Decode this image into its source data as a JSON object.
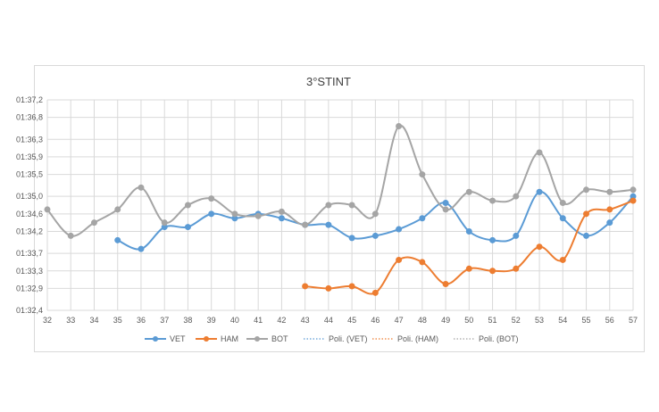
{
  "chart_data": {
    "type": "line",
    "title": "3°STINT",
    "x": [
      32,
      33,
      34,
      35,
      36,
      37,
      38,
      39,
      40,
      41,
      42,
      43,
      44,
      45,
      46,
      47,
      48,
      49,
      50,
      51,
      52,
      53,
      54,
      55,
      56,
      57
    ],
    "x_tick_labels": [
      "32",
      "33",
      "34",
      "35",
      "36",
      "37",
      "38",
      "39",
      "40",
      "41",
      "42",
      "43",
      "44",
      "45",
      "46",
      "47",
      "48",
      "49",
      "50",
      "51",
      "52",
      "53",
      "54",
      "55",
      "56",
      "57"
    ],
    "y_tick_labels": [
      "01:32,4",
      "01:32,9",
      "01:33,3",
      "01:33,7",
      "01:34,2",
      "01:34,6",
      "01:35,0",
      "01:35,5",
      "01:35,9",
      "01:36,3",
      "01:36,8",
      "01:37,2"
    ],
    "y_tick_seconds": [
      92.4,
      92.9,
      93.3,
      93.7,
      94.2,
      94.6,
      95.0,
      95.5,
      95.9,
      96.3,
      96.8,
      97.2
    ],
    "ylim_seconds": [
      92.4,
      97.2
    ],
    "y_unit": "lap time (mm:ss,d)",
    "grid": true,
    "legend_position": "bottom",
    "series": [
      {
        "name": "VET",
        "color": "#5b9bd5",
        "markers": true,
        "smooth": true,
        "x": [
          35,
          36,
          37,
          38,
          39,
          40,
          41,
          42,
          43,
          44,
          45,
          46,
          47,
          48,
          49,
          50,
          51,
          52,
          53,
          54,
          55,
          56,
          57
        ],
        "y": [
          94.0,
          93.8,
          94.3,
          94.3,
          94.6,
          94.5,
          94.6,
          94.5,
          94.35,
          94.35,
          94.05,
          94.1,
          94.25,
          94.5,
          94.85,
          94.2,
          94.0,
          94.1,
          95.1,
          94.5,
          94.1,
          94.4,
          95.0
        ]
      },
      {
        "name": "HAM",
        "color": "#ed7d31",
        "markers": true,
        "smooth": true,
        "x": [
          43,
          44,
          45,
          46,
          47,
          48,
          49,
          50,
          51,
          52,
          53,
          54,
          55,
          56,
          57
        ],
        "y": [
          92.95,
          92.9,
          92.95,
          92.8,
          93.55,
          93.5,
          93.0,
          93.35,
          93.3,
          93.35,
          93.85,
          93.55,
          94.6,
          94.7,
          94.9
        ]
      },
      {
        "name": "BOT",
        "color": "#a5a5a5",
        "markers": true,
        "smooth": true,
        "x": [
          32,
          33,
          34,
          35,
          36,
          37,
          38,
          39,
          40,
          41,
          42,
          43,
          44,
          45,
          46,
          47,
          48,
          49,
          50,
          51,
          52,
          53,
          54,
          55,
          56,
          57
        ],
        "y": [
          94.7,
          94.1,
          94.4,
          94.7,
          95.2,
          94.4,
          94.8,
          94.95,
          94.6,
          94.55,
          94.65,
          94.35,
          94.8,
          94.8,
          94.6,
          96.6,
          95.5,
          94.7,
          95.1,
          94.9,
          95.0,
          96.0,
          94.85,
          95.15,
          95.1,
          95.15
        ]
      },
      {
        "name": "Poli. (VET)",
        "color": "#5b9bd5",
        "dotted": true,
        "trendline_of": "VET"
      },
      {
        "name": "Poli. (HAM)",
        "color": "#ed7d31",
        "dotted": true,
        "trendline_of": "HAM"
      },
      {
        "name": "Poli. (BOT)",
        "color": "#a5a5a5",
        "dotted": true,
        "trendline_of": "BOT"
      }
    ]
  }
}
